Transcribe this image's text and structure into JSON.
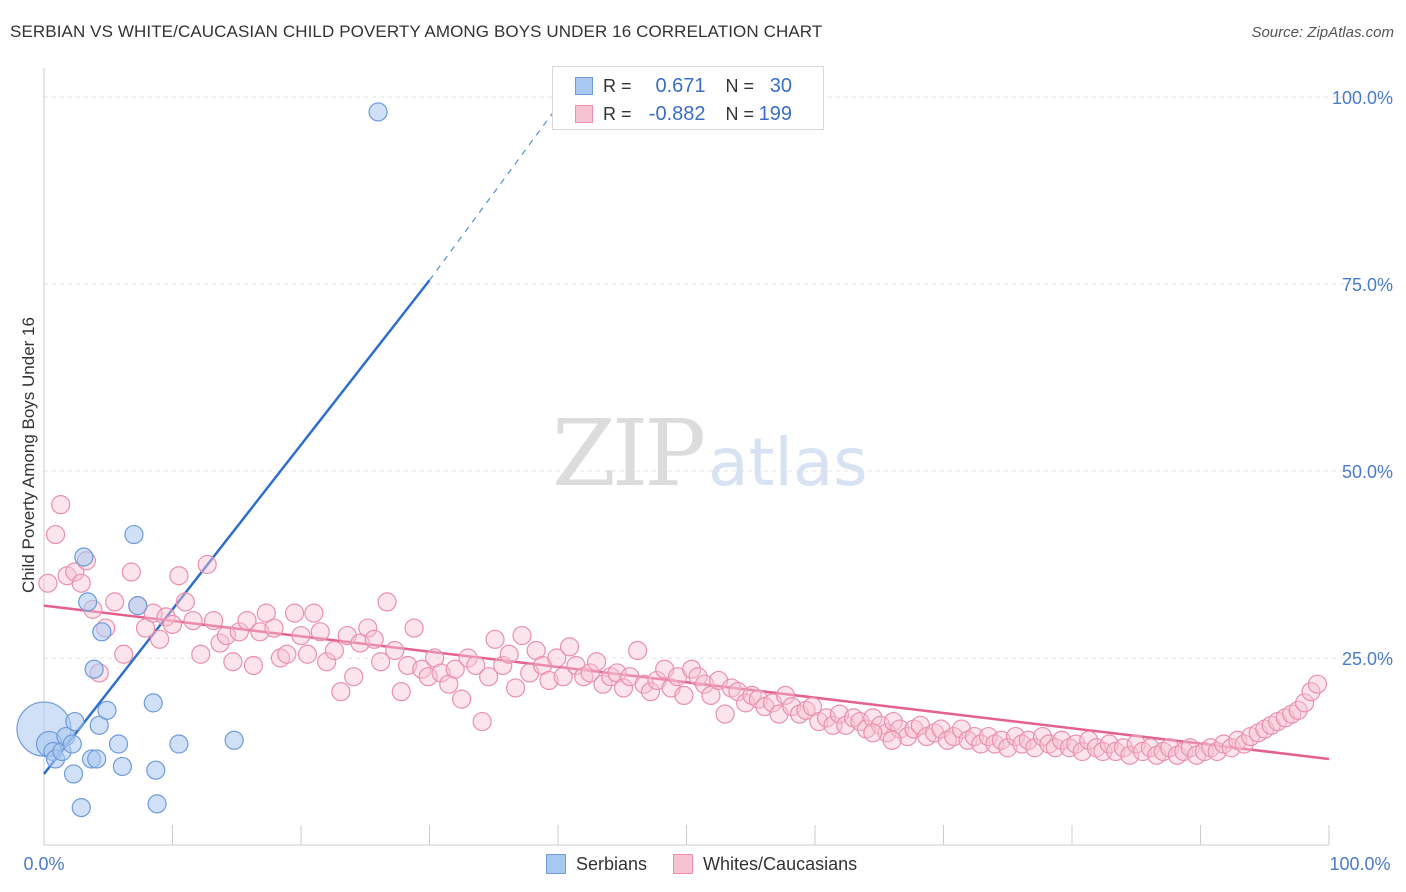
{
  "title": "SERBIAN VS WHITE/CAUCASIAN CHILD POVERTY AMONG BOYS UNDER 16 CORRELATION CHART",
  "source": "Source: ZipAtlas.com",
  "watermark": {
    "zip": "ZIP",
    "atlas": "atlas"
  },
  "legend": {
    "r_label": "R =",
    "n_label": "N =",
    "serbians": {
      "r": "0.671",
      "n": "30"
    },
    "whites": {
      "r": "-0.882",
      "n": "199"
    }
  },
  "colors": {
    "serbian_fill": "#a9c8f0",
    "serbian_stroke": "#6e9bd8",
    "serbian_line": "#2f6fcc",
    "white_fill": "#f6c3d3",
    "white_stroke": "#ea90ad",
    "white_line": "#e4608e",
    "tick_text": "#4a7cc9",
    "grid": "#e3e3e3"
  },
  "chart_data": {
    "type": "scatter",
    "title": "SERBIAN VS WHITE/CAUCASIAN CHILD POVERTY AMONG BOYS UNDER 16 CORRELATION CHART",
    "xlabel": "",
    "ylabel": "Child Poverty Among Boys Under 16",
    "xlim": [
      0,
      100
    ],
    "ylim": [
      0,
      100
    ],
    "x_tick_labels": [
      "0.0%",
      "100.0%"
    ],
    "y_ticks": [
      {
        "value": 100,
        "label": "100.0%"
      },
      {
        "value": 75,
        "label": "75.0%"
      },
      {
        "value": 50,
        "label": "50.0%"
      },
      {
        "value": 25,
        "label": "25.0%"
      }
    ],
    "grid": true,
    "legend_position": "bottom-center",
    "series": [
      {
        "name": "Serbians",
        "r": 0.671,
        "n": 30,
        "trend": {
          "x0": 0,
          "y0": 9.5,
          "x1": 30,
          "y1": 75.5,
          "dashed_to_x": 40.5,
          "dashed_to_y": 100
        },
        "points": [
          [
            0,
            15.5,
            3
          ],
          [
            0.4,
            13.5,
            1.4
          ],
          [
            0.7,
            12.5,
            1
          ],
          [
            0.9,
            11.5,
            1
          ],
          [
            1.4,
            12.5,
            1
          ],
          [
            1.7,
            14.5,
            1
          ],
          [
            2.2,
            13.5,
            1
          ],
          [
            2.3,
            9.5,
            1
          ],
          [
            2.4,
            16.5,
            1
          ],
          [
            2.9,
            5.0,
            1
          ],
          [
            3.1,
            38.5,
            1
          ],
          [
            3.4,
            32.5,
            1
          ],
          [
            3.7,
            11.5,
            1
          ],
          [
            3.9,
            23.5,
            1
          ],
          [
            4.1,
            11.5,
            1
          ],
          [
            4.3,
            16.0,
            1
          ],
          [
            4.5,
            28.5,
            1
          ],
          [
            4.9,
            18.0,
            1
          ],
          [
            5.8,
            13.5,
            1
          ],
          [
            6.1,
            10.5,
            1
          ],
          [
            7.0,
            41.5,
            1
          ],
          [
            7.3,
            32.0,
            1
          ],
          [
            8.5,
            19.0,
            1
          ],
          [
            8.7,
            10.0,
            1
          ],
          [
            8.8,
            5.5,
            1
          ],
          [
            10.5,
            13.5,
            1
          ],
          [
            14.8,
            14.0,
            1
          ],
          [
            26.0,
            98.0,
            1
          ]
        ]
      },
      {
        "name": "Whites/Caucasians",
        "r": -0.882,
        "n": 199,
        "trend": {
          "x0": 0,
          "y0": 32,
          "x1": 100,
          "y1": 11.5
        },
        "points": [
          [
            0.3,
            35.0
          ],
          [
            0.9,
            41.5
          ],
          [
            1.3,
            45.5
          ],
          [
            1.8,
            36.0
          ],
          [
            2.4,
            36.5
          ],
          [
            2.9,
            35.0
          ],
          [
            3.3,
            38.0
          ],
          [
            3.8,
            31.5
          ],
          [
            4.3,
            23.0
          ],
          [
            4.8,
            29.0
          ],
          [
            5.5,
            32.5
          ],
          [
            6.2,
            25.5
          ],
          [
            6.8,
            36.5
          ],
          [
            7.3,
            32.0
          ],
          [
            7.9,
            29.0
          ],
          [
            8.5,
            31.0
          ],
          [
            9.0,
            27.5
          ],
          [
            9.5,
            30.5
          ],
          [
            10.0,
            29.5
          ],
          [
            10.5,
            36.0
          ],
          [
            11.0,
            32.5
          ],
          [
            11.6,
            30.0
          ],
          [
            12.2,
            25.5
          ],
          [
            12.7,
            37.5
          ],
          [
            13.2,
            30.0
          ],
          [
            13.7,
            27.0
          ],
          [
            14.2,
            28.0
          ],
          [
            14.7,
            24.5
          ],
          [
            15.2,
            28.5
          ],
          [
            15.8,
            30.0
          ],
          [
            16.3,
            24.0
          ],
          [
            16.8,
            28.5
          ],
          [
            17.3,
            31.0
          ],
          [
            17.9,
            29.0
          ],
          [
            18.4,
            25.0
          ],
          [
            18.9,
            25.5
          ],
          [
            19.5,
            31.0
          ],
          [
            20.0,
            28.0
          ],
          [
            20.5,
            25.5
          ],
          [
            21.0,
            31.0
          ],
          [
            21.5,
            28.5
          ],
          [
            22.0,
            24.5
          ],
          [
            22.6,
            26.0
          ],
          [
            23.1,
            20.5
          ],
          [
            23.6,
            28.0
          ],
          [
            24.1,
            22.5
          ],
          [
            24.6,
            27.0
          ],
          [
            25.2,
            29.0
          ],
          [
            25.7,
            27.5
          ],
          [
            26.2,
            24.5
          ],
          [
            26.7,
            32.5
          ],
          [
            27.3,
            26.0
          ],
          [
            27.8,
            20.5
          ],
          [
            28.3,
            24.0
          ],
          [
            28.8,
            29.0
          ],
          [
            29.4,
            23.5
          ],
          [
            29.9,
            22.5
          ],
          [
            30.4,
            25.0
          ],
          [
            30.9,
            23.0
          ],
          [
            31.5,
            21.5
          ],
          [
            32.0,
            23.5
          ],
          [
            32.5,
            19.5
          ],
          [
            33.0,
            25.0
          ],
          [
            33.6,
            24.0
          ],
          [
            34.1,
            16.5
          ],
          [
            34.6,
            22.5
          ],
          [
            35.1,
            27.5
          ],
          [
            35.7,
            24.0
          ],
          [
            36.2,
            25.5
          ],
          [
            36.7,
            21.0
          ],
          [
            37.2,
            28.0
          ],
          [
            37.8,
            23.0
          ],
          [
            38.3,
            26.0
          ],
          [
            38.8,
            24.0
          ],
          [
            39.3,
            22.0
          ],
          [
            39.9,
            25.0
          ],
          [
            40.4,
            22.5
          ],
          [
            40.9,
            26.5
          ],
          [
            41.4,
            24.0
          ],
          [
            42.0,
            22.5
          ],
          [
            42.5,
            23.0
          ],
          [
            43.0,
            24.5
          ],
          [
            43.5,
            21.5
          ],
          [
            44.1,
            22.5
          ],
          [
            44.6,
            23.0
          ],
          [
            45.1,
            21.0
          ],
          [
            45.6,
            22.5
          ],
          [
            46.2,
            26.0
          ],
          [
            46.7,
            21.5
          ],
          [
            47.2,
            20.5
          ],
          [
            47.7,
            22.0
          ],
          [
            48.3,
            23.5
          ],
          [
            48.8,
            21.0
          ],
          [
            49.3,
            22.5
          ],
          [
            49.8,
            20.0
          ],
          [
            50.4,
            23.5
          ],
          [
            50.9,
            22.5
          ],
          [
            51.4,
            21.5
          ],
          [
            51.9,
            20.0
          ],
          [
            52.5,
            22.0
          ],
          [
            53.0,
            17.5
          ],
          [
            53.5,
            21.0
          ],
          [
            54.0,
            20.5
          ],
          [
            54.6,
            19.0
          ],
          [
            55.1,
            20.0
          ],
          [
            55.6,
            19.5
          ],
          [
            56.1,
            18.5
          ],
          [
            56.7,
            19.0
          ],
          [
            57.2,
            17.5
          ],
          [
            57.7,
            20.0
          ],
          [
            58.2,
            18.5
          ],
          [
            58.8,
            17.5
          ],
          [
            59.3,
            18.0
          ],
          [
            59.8,
            18.5
          ],
          [
            60.3,
            16.5
          ],
          [
            60.9,
            17.0
          ],
          [
            61.4,
            16.0
          ],
          [
            61.9,
            17.5
          ],
          [
            62.4,
            16.0
          ],
          [
            63.0,
            17.0
          ],
          [
            63.5,
            16.5
          ],
          [
            64.0,
            15.5
          ],
          [
            64.5,
            17.0
          ],
          [
            65.1,
            16.0
          ],
          [
            65.6,
            15.0
          ],
          [
            66.1,
            16.5
          ],
          [
            66.6,
            15.5
          ],
          [
            67.2,
            14.5
          ],
          [
            67.7,
            15.5
          ],
          [
            68.2,
            16.0
          ],
          [
            68.7,
            14.5
          ],
          [
            69.3,
            15.0
          ],
          [
            69.8,
            15.5
          ],
          [
            70.3,
            14.0
          ],
          [
            70.8,
            14.5
          ],
          [
            71.4,
            15.5
          ],
          [
            71.9,
            14.0
          ],
          [
            72.4,
            14.5
          ],
          [
            72.9,
            13.5
          ],
          [
            73.5,
            14.5
          ],
          [
            74.0,
            13.5
          ],
          [
            74.5,
            14.0
          ],
          [
            75.0,
            13.0
          ],
          [
            75.6,
            14.5
          ],
          [
            76.1,
            13.5
          ],
          [
            76.6,
            14.0
          ],
          [
            77.1,
            13.0
          ],
          [
            77.7,
            14.5
          ],
          [
            78.2,
            13.5
          ],
          [
            78.7,
            13.0
          ],
          [
            79.2,
            14.0
          ],
          [
            79.8,
            13.0
          ],
          [
            80.3,
            13.5
          ],
          [
            80.8,
            12.5
          ],
          [
            81.3,
            14.0
          ],
          [
            81.9,
            13.0
          ],
          [
            82.4,
            12.5
          ],
          [
            82.9,
            13.5
          ],
          [
            83.4,
            12.5
          ],
          [
            84.0,
            13.0
          ],
          [
            84.5,
            12.0
          ],
          [
            85.0,
            13.5
          ],
          [
            85.5,
            12.5
          ],
          [
            86.1,
            13.0
          ],
          [
            86.6,
            12.0
          ],
          [
            87.1,
            12.5
          ],
          [
            87.6,
            13.0
          ],
          [
            88.2,
            12.0
          ],
          [
            88.7,
            12.5
          ],
          [
            89.2,
            13.0
          ],
          [
            89.7,
            12.0
          ],
          [
            90.3,
            12.5
          ],
          [
            90.8,
            13.0
          ],
          [
            91.3,
            12.5
          ],
          [
            91.8,
            13.5
          ],
          [
            92.4,
            13.0
          ],
          [
            92.9,
            14.0
          ],
          [
            93.4,
            13.5
          ],
          [
            93.9,
            14.5
          ],
          [
            94.5,
            15.0
          ],
          [
            95.0,
            15.5
          ],
          [
            95.5,
            16.0
          ],
          [
            96.0,
            16.5
          ],
          [
            96.6,
            17.0
          ],
          [
            97.1,
            17.5
          ],
          [
            97.6,
            18.0
          ],
          [
            98.1,
            19.0
          ],
          [
            98.6,
            20.5
          ],
          [
            99.1,
            21.5
          ],
          [
            64.5,
            15.0
          ],
          [
            66.0,
            14.0
          ]
        ]
      }
    ]
  },
  "bottom_legend": [
    "Serbians",
    "Whites/Caucasians"
  ]
}
